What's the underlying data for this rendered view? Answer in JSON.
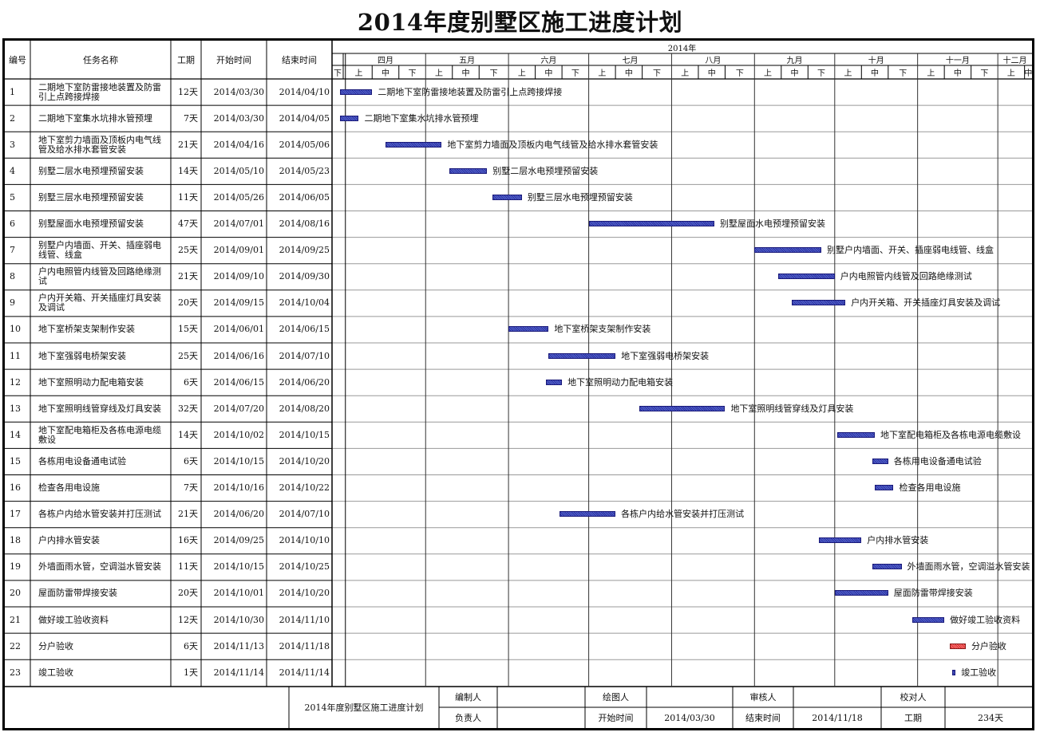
{
  "title": "2014年度别墅区施工进度计划",
  "headers": {
    "id": "编号",
    "name": "任务名称",
    "duration": "工期",
    "start": "开始时间",
    "end": "结束时间",
    "year": "2014年"
  },
  "months": [
    {
      "label": "四月"
    },
    {
      "label": "五月"
    },
    {
      "label": "六月"
    },
    {
      "label": "七月"
    },
    {
      "label": "八月"
    },
    {
      "label": "九月"
    },
    {
      "label": "十月"
    },
    {
      "label": "十一月"
    },
    {
      "label": "十二月"
    }
  ],
  "period_labels": {
    "shang": "上",
    "zhong": "中",
    "xia": "下"
  },
  "chart_data": {
    "type": "gantt",
    "title": "2014年度别墅区施工进度计划",
    "timeline_start": "2014-03-27",
    "timeline_months": [
      "四月",
      "五月",
      "六月",
      "七月",
      "八月",
      "九月",
      "十月",
      "十一月",
      "十二月"
    ],
    "tasks": [
      {
        "id": "1",
        "name": "二期地下室防雷接地装置及防雷引上点跨接焊接",
        "duration": "12天",
        "start": "2014/03/30",
        "end": "2014/04/10",
        "color": "blue"
      },
      {
        "id": "2",
        "name": "二期地下室集水坑排水管预埋",
        "duration": "7天",
        "start": "2014/03/30",
        "end": "2014/04/05",
        "color": "blue"
      },
      {
        "id": "3",
        "name": "地下室剪力墙面及顶板内电气线管及给水排水套管安装",
        "duration": "21天",
        "start": "2014/04/16",
        "end": "2014/05/06",
        "color": "blue"
      },
      {
        "id": "4",
        "name": "别墅二层水电预埋预留安装",
        "duration": "14天",
        "start": "2014/05/10",
        "end": "2014/05/23",
        "color": "blue"
      },
      {
        "id": "5",
        "name": "别墅三层水电预埋预留安装",
        "duration": "11天",
        "start": "2014/05/26",
        "end": "2014/06/05",
        "color": "blue"
      },
      {
        "id": "6",
        "name": "别墅屋面水电预埋预留安装",
        "duration": "47天",
        "start": "2014/07/01",
        "end": "2014/08/16",
        "color": "blue"
      },
      {
        "id": "7",
        "name": "别墅户内墙面、开关、插座弱电线管、线盒",
        "duration": "25天",
        "start": "2014/09/01",
        "end": "2014/09/25",
        "color": "blue"
      },
      {
        "id": "8",
        "name": "户内电照管内线管及回路绝缘测试",
        "duration": "21天",
        "start": "2014/09/10",
        "end": "2014/09/30",
        "color": "blue"
      },
      {
        "id": "9",
        "name": "户内开关箱、开关插座灯具安装及调试",
        "duration": "20天",
        "start": "2014/09/15",
        "end": "2014/10/04",
        "color": "blue"
      },
      {
        "id": "10",
        "name": "地下室桥架支架制作安装",
        "duration": "15天",
        "start": "2014/06/01",
        "end": "2014/06/15",
        "color": "blue"
      },
      {
        "id": "11",
        "name": "地下室强弱电桥架安装",
        "duration": "25天",
        "start": "2014/06/16",
        "end": "2014/07/10",
        "color": "blue"
      },
      {
        "id": "12",
        "name": "地下室照明动力配电箱安装",
        "duration": "6天",
        "start": "2014/06/15",
        "end": "2014/06/20",
        "color": "blue"
      },
      {
        "id": "13",
        "name": "地下室照明线管穿线及灯具安装",
        "duration": "32天",
        "start": "2014/07/20",
        "end": "2014/08/20",
        "color": "blue"
      },
      {
        "id": "14",
        "name": "地下室配电箱柜及各栋电源电缆敷设",
        "duration": "14天",
        "start": "2014/10/02",
        "end": "2014/10/15",
        "color": "blue"
      },
      {
        "id": "15",
        "name": "各栋用电设备通电试验",
        "duration": "6天",
        "start": "2014/10/15",
        "end": "2014/10/20",
        "color": "blue"
      },
      {
        "id": "16",
        "name": "检查各用电设施",
        "duration": "7天",
        "start": "2014/10/16",
        "end": "2014/10/22",
        "color": "blue"
      },
      {
        "id": "17",
        "name": "各栋户内给水管安装并打压测试",
        "duration": "21天",
        "start": "2014/06/20",
        "end": "2014/07/10",
        "color": "blue"
      },
      {
        "id": "18",
        "name": "户内排水管安装",
        "duration": "16天",
        "start": "2014/09/25",
        "end": "2014/10/10",
        "color": "blue"
      },
      {
        "id": "19",
        "name": "外墙面雨水管，空调溢水管安装",
        "duration": "11天",
        "start": "2014/10/15",
        "end": "2014/10/25",
        "color": "blue"
      },
      {
        "id": "20",
        "name": "屋面防雷带焊接安装",
        "duration": "20天",
        "start": "2014/10/01",
        "end": "2014/10/20",
        "color": "blue"
      },
      {
        "id": "21",
        "name": "做好竣工验收资料",
        "duration": "12天",
        "start": "2014/10/30",
        "end": "2014/11/10",
        "color": "blue"
      },
      {
        "id": "22",
        "name": "分户验收",
        "duration": "6天",
        "start": "2014/11/13",
        "end": "2014/11/18",
        "color": "red"
      },
      {
        "id": "23",
        "name": "竣工验收",
        "duration": "1天",
        "start": "2014/11/14",
        "end": "2014/11/14",
        "color": "blue"
      }
    ]
  },
  "footer": {
    "plan_name": "2014年度别墅区施工进度计划",
    "compiler_label": "编制人",
    "compiler_value": "",
    "drawer_label": "绘图人",
    "drawer_value": "",
    "reviewer_label": "审核人",
    "reviewer_value": "",
    "checker_label": "校对人",
    "checker_value": "",
    "owner_label": "负责人",
    "owner_value": "",
    "start_label": "开始时间",
    "start_value": "2014/03/30",
    "end_label": "结束时间",
    "end_value": "2014/11/18",
    "duration_label": "工期",
    "duration_value": "234天"
  }
}
